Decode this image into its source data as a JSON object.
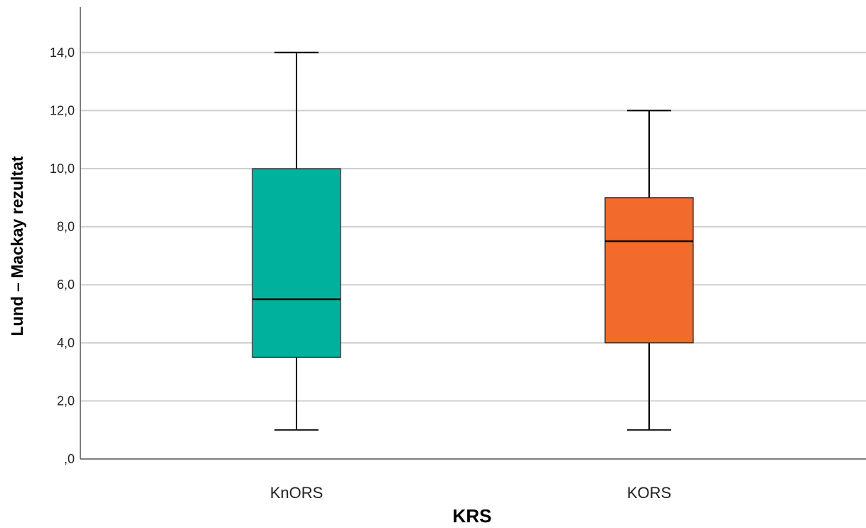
{
  "chart_data": {
    "type": "boxplot",
    "xlabel": "KRS",
    "ylabel": "Lund – Mackay rezultat",
    "ylim": [
      0,
      15.5
    ],
    "yticks": [
      0,
      2,
      4,
      6,
      8,
      10,
      12,
      14
    ],
    "ytick_labels": [
      ",0",
      "2,0",
      "4,0",
      "6,0",
      "8,0",
      "10,0",
      "12,0",
      "14,0"
    ],
    "grid": true,
    "categories": [
      "KnORS",
      "KORS"
    ],
    "boxes": [
      {
        "category": "KnORS",
        "whisker_low": 1,
        "q1": 3.5,
        "median": 5.5,
        "q3": 10,
        "whisker_high": 14,
        "color": "#00b29d"
      },
      {
        "category": "KORS",
        "whisker_low": 1,
        "q1": 4,
        "median": 7.5,
        "q3": 9,
        "whisker_high": 12,
        "color": "#f26a2c"
      }
    ]
  }
}
